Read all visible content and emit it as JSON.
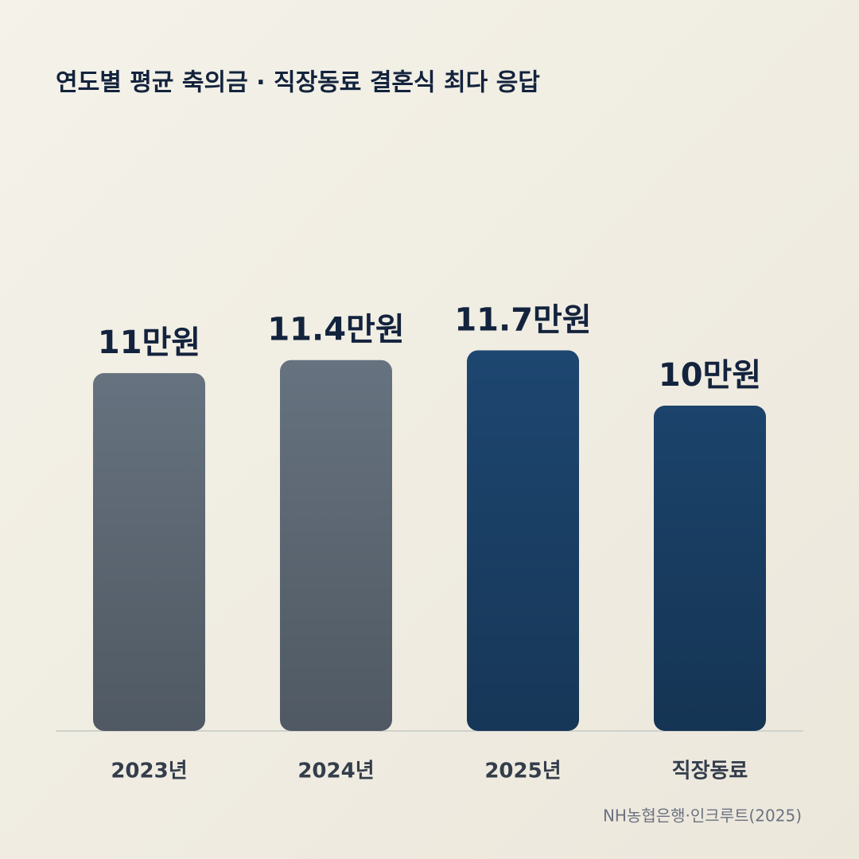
{
  "chart_data": {
    "type": "bar",
    "title": "연도별 평균 축의금 · 직장동료 결혼식 최다 응답",
    "categories": [
      "2023년",
      "2024년",
      "2025년",
      "직장동료"
    ],
    "values": [
      11,
      11.4,
      11.7,
      10
    ],
    "value_labels": [
      "11만원",
      "11.4만원",
      "11.7만원",
      "10만원"
    ],
    "colors": [
      "#66727f",
      "#66727f",
      "#1d4670",
      "#1b436b"
    ],
    "source": "NH농협은행·인크루트(2025)"
  }
}
